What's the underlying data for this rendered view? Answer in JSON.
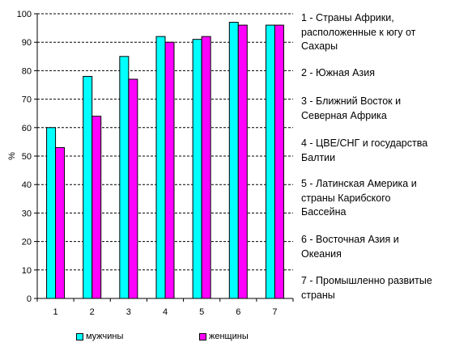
{
  "chart_data": {
    "type": "bar",
    "categories": [
      "1",
      "2",
      "3",
      "4",
      "5",
      "6",
      "7"
    ],
    "series": [
      {
        "name": "мужчины",
        "values": [
          60,
          78,
          85,
          92,
          91,
          97,
          96
        ],
        "color": "#00FFFF"
      },
      {
        "name": "женщины",
        "values": [
          53,
          64,
          77,
          90,
          92,
          96,
          96
        ],
        "color": "#FF00FF"
      }
    ],
    "ylabel": "%",
    "ylim": [
      0,
      100
    ],
    "yticks": [
      0,
      10,
      20,
      30,
      40,
      50,
      60,
      70,
      80,
      90,
      100
    ],
    "grid": true,
    "legend_position": "bottom"
  },
  "notes": [
    "1 - Страны Африки,\nрасположенные к югу от\nСахары",
    "2 - Южная Азия",
    "3 - Ближний Восток и\nСеверная Африка",
    "4 - ЦВЕ/СНГ и государства\nБалтии",
    "5 - Латинская Америка и\nстраны Карибского\nБассейна",
    "6 - Восточная Азия и\nОкеания",
    "7 - Промышленно развитые\nстраны"
  ]
}
